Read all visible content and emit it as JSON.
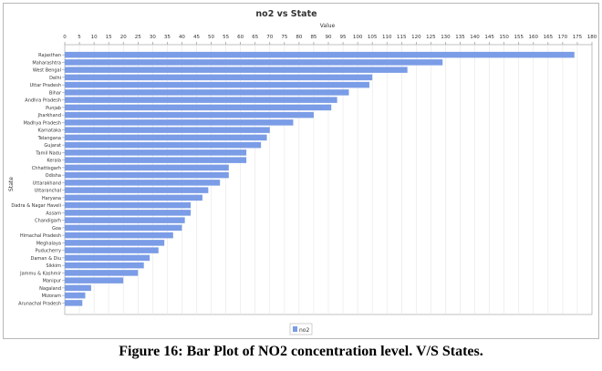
{
  "chart_data": {
    "type": "bar",
    "orientation": "horizontal",
    "title": "no2 vs State",
    "xlabel": "Value",
    "ylabel": "State",
    "xlim": [
      0,
      180
    ],
    "x_ticks": [
      0,
      5,
      10,
      15,
      20,
      25,
      30,
      35,
      40,
      45,
      50,
      55,
      60,
      65,
      70,
      75,
      80,
      85,
      90,
      95,
      100,
      105,
      110,
      115,
      120,
      125,
      130,
      135,
      140,
      145,
      150,
      155,
      160,
      165,
      170,
      175,
      180
    ],
    "axis_position": "top",
    "grid": true,
    "legend_position": "bottom-center",
    "bar_color": "#7b9ce6",
    "categories": [
      "Rajasthan",
      "Maharashtra",
      "West Bengal",
      "Delhi",
      "Uttar Pradesh",
      "Bihar",
      "Andhra Pradesh",
      "Punjab",
      "Jharkhand",
      "Madhya Pradesh",
      "Karnataka",
      "Telangana",
      "Gujarat",
      "Tamil Nadu",
      "Kerala",
      "Chhattisgarh",
      "Odisha",
      "Uttarakhand",
      "Uttaranchal",
      "Haryana",
      "Dadra & Nagar Haveli",
      "Assam",
      "Chandigarh",
      "Goa",
      "Himachal Pradesh",
      "Meghalaya",
      "Puducherry",
      "Daman & Diu",
      "Sikkim",
      "Jammu & Kashmir",
      "Manipur",
      "Nagaland",
      "Mizoram",
      "Arunachal Pradesh"
    ],
    "series": [
      {
        "name": "no2",
        "values": [
          174,
          129,
          117,
          105,
          104,
          97,
          93,
          91,
          85,
          78,
          70,
          69,
          67,
          62,
          62,
          56,
          56,
          53,
          49,
          47,
          43,
          43,
          41,
          40,
          37,
          34,
          32,
          29,
          27,
          25,
          20,
          9,
          7,
          6
        ]
      }
    ]
  },
  "caption": "Figure 16: Bar Plot of NO2 concentration level. V/S States."
}
